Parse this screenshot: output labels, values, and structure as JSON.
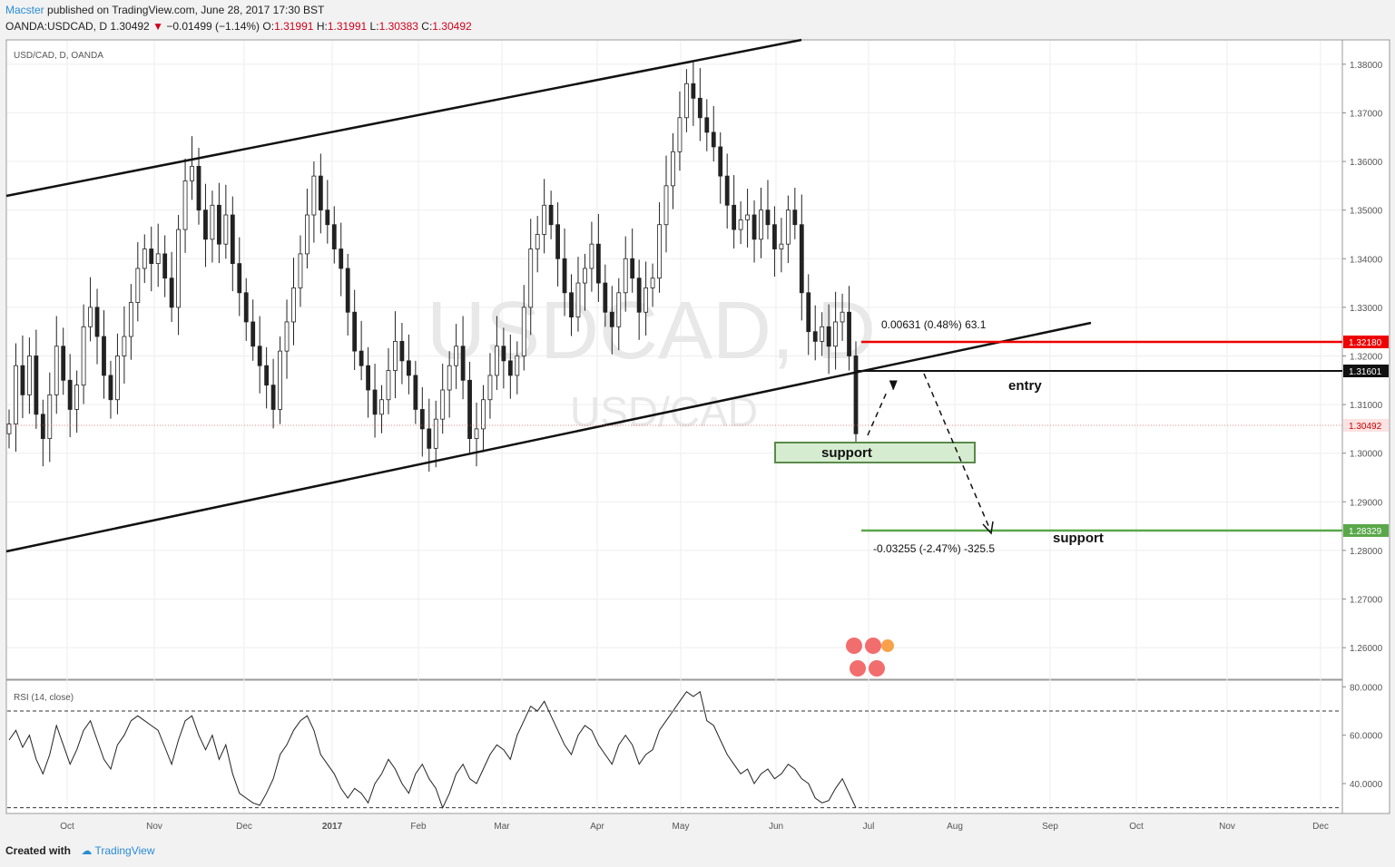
{
  "header": {
    "author": "Macster",
    "published": "published on TradingView.com, June 28, 2017 17:30 BST",
    "symbol_line": "OANDA:USDCAD, D  1.30492",
    "arrow": "▼",
    "change": "−0.01499 (−1.14%)",
    "o_label": "O:",
    "o_value": "1.31991",
    "h_label": "H:",
    "h_value": "1.31991",
    "l_label": "L:",
    "l_value": "1.30383",
    "c_label": "C:",
    "c_value": "1.30492"
  },
  "footer": {
    "created": "Created with",
    "brand": "TradingView"
  },
  "chart_data": {
    "type": "candlestick",
    "title": "USD/CAD, D, OANDA",
    "watermark_main": "USDCAD, D",
    "watermark_sub": "USD/CAD",
    "yaxis": {
      "ticks": [
        "1.38000",
        "1.37000",
        "1.36000",
        "1.35000",
        "1.34000",
        "1.33000",
        "1.32000",
        "1.31000",
        "1.30000",
        "1.29000",
        "1.28000",
        "1.27000",
        "1.26000"
      ],
      "range": [
        1.2535,
        1.385
      ]
    },
    "xaxis": {
      "ticks": [
        "Oct",
        "Nov",
        "Dec",
        "2017",
        "Feb",
        "Mar",
        "Apr",
        "May",
        "Jun",
        "Jul",
        "Aug",
        "Sep",
        "Oct",
        "Nov",
        "Dec"
      ]
    },
    "closes_path": [
      1.306,
      1.318,
      1.312,
      1.32,
      1.308,
      1.303,
      1.312,
      1.322,
      1.315,
      1.309,
      1.314,
      1.326,
      1.33,
      1.324,
      1.316,
      1.311,
      1.32,
      1.324,
      1.331,
      1.338,
      1.342,
      1.339,
      1.341,
      1.336,
      1.33,
      1.346,
      1.356,
      1.359,
      1.35,
      1.344,
      1.351,
      1.343,
      1.349,
      1.339,
      1.333,
      1.327,
      1.322,
      1.318,
      1.314,
      1.309,
      1.321,
      1.327,
      1.334,
      1.341,
      1.349,
      1.357,
      1.35,
      1.347,
      1.342,
      1.338,
      1.329,
      1.321,
      1.318,
      1.313,
      1.308,
      1.311,
      1.317,
      1.323,
      1.319,
      1.316,
      1.309,
      1.305,
      1.301,
      1.307,
      1.313,
      1.318,
      1.322,
      1.315,
      1.303,
      1.305,
      1.311,
      1.316,
      1.322,
      1.319,
      1.316,
      1.32,
      1.33,
      1.342,
      1.345,
      1.351,
      1.347,
      1.34,
      1.333,
      1.328,
      1.335,
      1.338,
      1.343,
      1.335,
      1.329,
      1.326,
      1.333,
      1.34,
      1.336,
      1.329,
      1.334,
      1.336,
      1.347,
      1.355,
      1.362,
      1.369,
      1.376,
      1.373,
      1.369,
      1.366,
      1.363,
      1.357,
      1.351,
      1.346,
      1.348,
      1.349,
      1.344,
      1.35,
      1.347,
      1.342,
      1.343,
      1.35,
      1.347,
      1.333,
      1.325,
      1.323,
      1.326,
      1.322,
      1.327,
      1.329,
      1.32,
      1.304
    ],
    "rsi": {
      "title": "RSI (14, close)",
      "ticks": [
        "80.0000",
        "60.0000",
        "40.0000"
      ],
      "range": [
        28,
        82
      ],
      "upper": 70,
      "lower": 30,
      "values": [
        58,
        62,
        55,
        60,
        50,
        44,
        52,
        64,
        56,
        48,
        54,
        62,
        66,
        58,
        50,
        46,
        56,
        60,
        66,
        68,
        66,
        64,
        62,
        55,
        48,
        58,
        66,
        68,
        60,
        54,
        60,
        50,
        56,
        44,
        36,
        34,
        32,
        31,
        36,
        42,
        52,
        56,
        62,
        66,
        68,
        62,
        52,
        48,
        44,
        38,
        34,
        38,
        36,
        32,
        40,
        44,
        50,
        46,
        40,
        36,
        44,
        48,
        42,
        38,
        30,
        36,
        44,
        48,
        42,
        40,
        46,
        52,
        56,
        54,
        50,
        60,
        66,
        72,
        70,
        74,
        68,
        62,
        56,
        52,
        60,
        64,
        62,
        56,
        52,
        48,
        56,
        60,
        56,
        48,
        52,
        54,
        62,
        66,
        70,
        74,
        78,
        76,
        78,
        66,
        64,
        58,
        52,
        48,
        44,
        46,
        40,
        44,
        46,
        42,
        44,
        48,
        46,
        42,
        40,
        34,
        32,
        33,
        38,
        42,
        36,
        30
      ]
    },
    "annotations": {
      "upper_measure": "0.00631 (0.48%) 63.1",
      "lower_measure": "-0.03255 (-2.47%) -325.5",
      "entry_label": "entry",
      "support_box_label": "support",
      "support_line_label": "support",
      "red_level": "1.32180",
      "entry_level": "1.31601",
      "current_price": "1.30492",
      "green_level": "1.28329"
    },
    "grid": true
  }
}
